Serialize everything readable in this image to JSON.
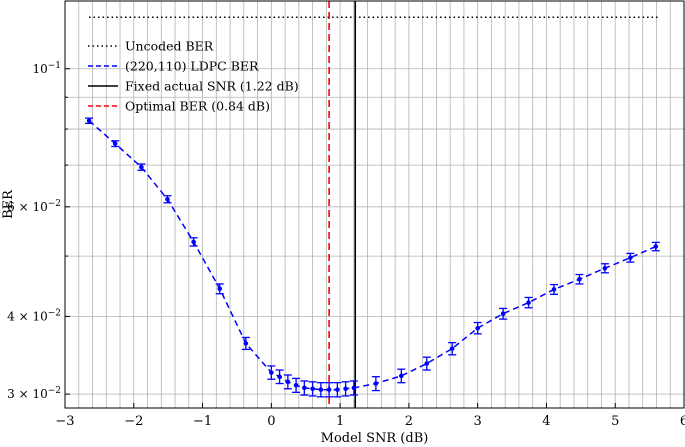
{
  "chart_data": {
    "type": "line",
    "xlabel": "Model SNR (dB)",
    "ylabel": "BER",
    "xlim": [
      -3,
      6
    ],
    "ylim": [
      0.0285,
      0.1285
    ],
    "y_scale": "log",
    "grid": true,
    "legend_position": "top-left",
    "x_ticks": [
      {
        "v": -3,
        "label": "−3"
      },
      {
        "v": -2,
        "label": "−2"
      },
      {
        "v": -1,
        "label": "−1"
      },
      {
        "v": 0,
        "label": "0"
      },
      {
        "v": 1,
        "label": "1"
      },
      {
        "v": 2,
        "label": "2"
      },
      {
        "v": 3,
        "label": "3"
      },
      {
        "v": 4,
        "label": "4"
      },
      {
        "v": 5,
        "label": "5"
      },
      {
        "v": 6,
        "label": "6"
      }
    ],
    "y_ticks": [
      {
        "v": 0.03,
        "base": "3 × 10",
        "exp": "−2"
      },
      {
        "v": 0.04,
        "base": "4 × 10",
        "exp": "−2"
      },
      {
        "v": 0.06,
        "base": "6 × 10",
        "exp": "−2"
      },
      {
        "v": 0.1,
        "base": "10",
        "exp": "−1"
      }
    ],
    "y_minor_gridlines": [
      0.05,
      0.07,
      0.08,
      0.09
    ],
    "series": [
      {
        "name": "Uncoded BER",
        "style": "dotted",
        "color": "#000000",
        "x": [
          -2.65,
          5.65
        ],
        "y": [
          0.121,
          0.121
        ]
      },
      {
        "name": "(220,110) LDPC BER",
        "style": "dashed",
        "color": "#0000ff",
        "marker": "dot",
        "error_bars": true,
        "points": [
          {
            "x": -2.65,
            "y": 0.0825,
            "err": 0.0008
          },
          {
            "x": -2.27,
            "y": 0.0758,
            "err": 0.0008
          },
          {
            "x": -1.89,
            "y": 0.0695,
            "err": 0.0008
          },
          {
            "x": -1.51,
            "y": 0.0617,
            "err": 0.0008
          },
          {
            "x": -1.13,
            "y": 0.0527,
            "err": 0.0008
          },
          {
            "x": -0.75,
            "y": 0.0443,
            "err": 0.0008
          },
          {
            "x": -0.37,
            "y": 0.0362,
            "err": 0.0008
          },
          {
            "x": 0.0,
            "y": 0.0325,
            "err": 0.0008
          },
          {
            "x": 0.12,
            "y": 0.032,
            "err": 0.0008
          },
          {
            "x": 0.24,
            "y": 0.0314,
            "err": 0.0008
          },
          {
            "x": 0.36,
            "y": 0.031,
            "err": 0.0008
          },
          {
            "x": 0.48,
            "y": 0.0307,
            "err": 0.0008
          },
          {
            "x": 0.6,
            "y": 0.0306,
            "err": 0.0008
          },
          {
            "x": 0.72,
            "y": 0.0305,
            "err": 0.0008
          },
          {
            "x": 0.84,
            "y": 0.0305,
            "err": 0.0008
          },
          {
            "x": 0.96,
            "y": 0.0305,
            "err": 0.0008
          },
          {
            "x": 1.08,
            "y": 0.0306,
            "err": 0.0008
          },
          {
            "x": 1.2,
            "y": 0.0307,
            "err": 0.0008
          },
          {
            "x": 1.52,
            "y": 0.0312,
            "err": 0.0008
          },
          {
            "x": 1.89,
            "y": 0.0321,
            "err": 0.0008
          },
          {
            "x": 2.26,
            "y": 0.0336,
            "err": 0.0008
          },
          {
            "x": 2.63,
            "y": 0.0355,
            "err": 0.0008
          },
          {
            "x": 3.0,
            "y": 0.0383,
            "err": 0.0008
          },
          {
            "x": 3.37,
            "y": 0.0404,
            "err": 0.0008
          },
          {
            "x": 3.74,
            "y": 0.0421,
            "err": 0.0008
          },
          {
            "x": 4.11,
            "y": 0.0442,
            "err": 0.0008
          },
          {
            "x": 4.48,
            "y": 0.0459,
            "err": 0.0008
          },
          {
            "x": 4.85,
            "y": 0.0478,
            "err": 0.0008
          },
          {
            "x": 5.22,
            "y": 0.0497,
            "err": 0.0008
          },
          {
            "x": 5.59,
            "y": 0.0518,
            "err": 0.0008
          }
        ]
      },
      {
        "name": "Fixed actual SNR (1.22 dB)",
        "style": "solid",
        "color": "#000000",
        "vertical_x": 1.22
      },
      {
        "name": "Optimal BER (0.84 dB)",
        "style": "dashed",
        "color": "#ff0000",
        "vertical_x": 0.84
      }
    ]
  }
}
